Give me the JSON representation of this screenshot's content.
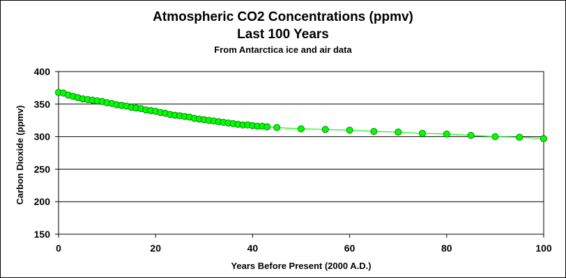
{
  "chart_data": {
    "type": "line",
    "title": "Atmospheric CO2 Concentrations (ppmv)",
    "subtitle": "Last 100 Years",
    "caption": "From Antarctica ice and air data",
    "xlabel": "Years Before Present (2000 A.D.)",
    "ylabel": "Carbon Dioxide (ppmv)",
    "xlim": [
      0,
      100
    ],
    "ylim": [
      150,
      400
    ],
    "xticks": [
      0,
      20,
      40,
      60,
      80,
      100
    ],
    "yticks": [
      150,
      200,
      250,
      300,
      350,
      400
    ],
    "grid": "horizontal",
    "legend": "none",
    "series": [
      {
        "color": "#00ff00",
        "marker_color": "#00ff00",
        "x": [
          0,
          1,
          2,
          3,
          4,
          5,
          6,
          7,
          8,
          9,
          10,
          11,
          12,
          13,
          14,
          15,
          16,
          17,
          18,
          19,
          20,
          21,
          22,
          23,
          24,
          25,
          26,
          27,
          28,
          29,
          30,
          31,
          32,
          33,
          34,
          35,
          36,
          37,
          38,
          39,
          40,
          41,
          42,
          43,
          45,
          50,
          55,
          60,
          65,
          70,
          75,
          80,
          85,
          90,
          95,
          100
        ],
        "y": [
          368,
          367,
          364,
          362,
          360,
          358,
          357,
          356,
          355,
          354,
          352,
          351,
          349,
          348,
          347,
          345,
          344,
          343,
          341,
          340,
          339,
          337,
          336,
          334,
          333,
          332,
          331,
          330,
          328,
          327,
          326,
          325,
          324,
          323,
          322,
          321,
          320,
          319,
          318,
          318,
          317,
          316,
          316,
          315,
          314,
          312,
          311,
          310,
          308,
          307,
          305,
          304,
          302,
          300,
          299,
          297
        ]
      }
    ]
  }
}
